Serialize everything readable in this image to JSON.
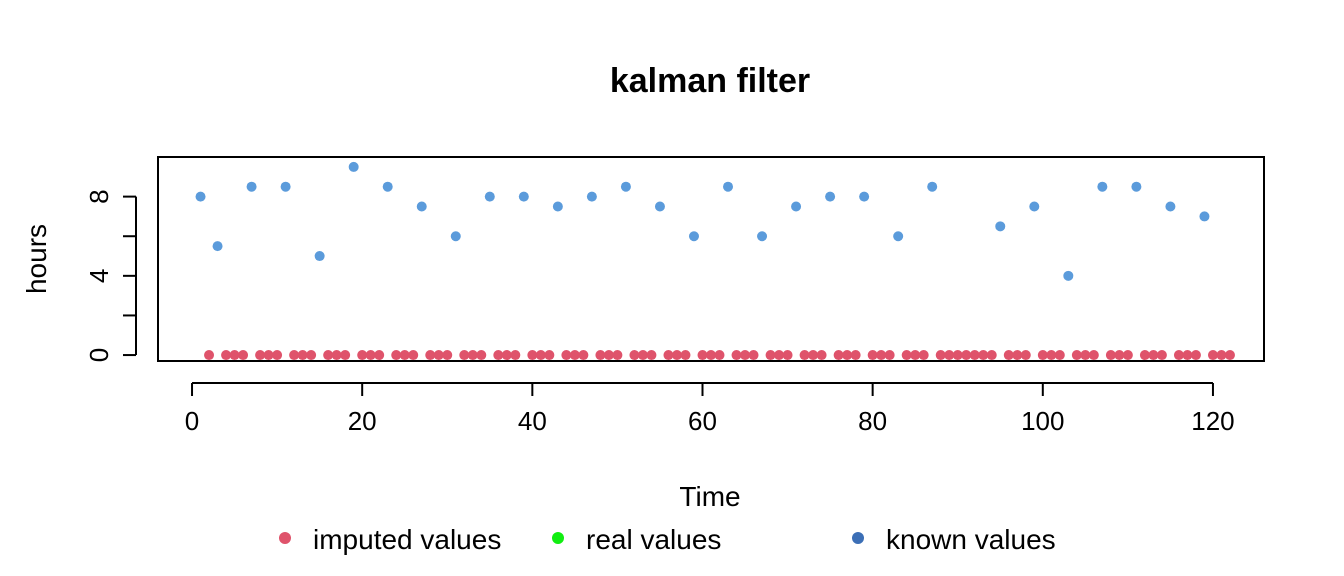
{
  "chart_data": {
    "type": "scatter",
    "title": "kalman filter",
    "xlabel": "Time",
    "ylabel": "hours",
    "xlim": [
      -4,
      126
    ],
    "ylim": [
      -0.3,
      10
    ],
    "xticks": [
      0,
      20,
      40,
      60,
      80,
      100,
      120
    ],
    "yticks": [
      0,
      2,
      4,
      6,
      8
    ],
    "ytick_labels": [
      "0",
      "",
      "4",
      "",
      "8"
    ],
    "grid": false,
    "legend_position": "bottom",
    "series": [
      {
        "name": "imputed values",
        "color": "#DF536B",
        "x": [
          2,
          4,
          5,
          6,
          8,
          9,
          10,
          12,
          13,
          14,
          16,
          17,
          18,
          20,
          21,
          22,
          24,
          25,
          26,
          28,
          29,
          30,
          32,
          33,
          34,
          36,
          37,
          38,
          40,
          41,
          42,
          44,
          45,
          46,
          48,
          49,
          50,
          52,
          53,
          54,
          56,
          57,
          58,
          60,
          61,
          62,
          64,
          65,
          66,
          68,
          69,
          70,
          72,
          73,
          74,
          76,
          77,
          78,
          80,
          81,
          82,
          84,
          85,
          86,
          88,
          89,
          90,
          91,
          92,
          93,
          94,
          96,
          97,
          98,
          100,
          101,
          102,
          104,
          105,
          106,
          108,
          109,
          110,
          112,
          113,
          114,
          116,
          117,
          118,
          120,
          121,
          122
        ],
        "y": [
          0,
          0,
          0,
          0,
          0,
          0,
          0,
          0,
          0,
          0,
          0,
          0,
          0,
          0,
          0,
          0,
          0,
          0,
          0,
          0,
          0,
          0,
          0,
          0,
          0,
          0,
          0,
          0,
          0,
          0,
          0,
          0,
          0,
          0,
          0,
          0,
          0,
          0,
          0,
          0,
          0,
          0,
          0,
          0,
          0,
          0,
          0,
          0,
          0,
          0,
          0,
          0,
          0,
          0,
          0,
          0,
          0,
          0,
          0,
          0,
          0,
          0,
          0,
          0,
          0,
          0,
          0,
          0,
          0,
          0,
          0,
          0,
          0,
          0,
          0,
          0,
          0,
          0,
          0,
          0,
          0,
          0,
          0,
          0,
          0,
          0,
          0,
          0,
          0,
          0,
          0,
          0
        ]
      },
      {
        "name": "real values",
        "color": "#11EE11",
        "x": [],
        "y": []
      },
      {
        "name": "known values",
        "color": "#5B9BDB",
        "legend_color": "#3C6FB6",
        "x": [
          1,
          3,
          7,
          11,
          15,
          19,
          23,
          27,
          31,
          35,
          39,
          43,
          47,
          51,
          55,
          59,
          63,
          67,
          71,
          75,
          79,
          83,
          87,
          95,
          99,
          103,
          107,
          111,
          115,
          119
        ],
        "y": [
          8,
          5.5,
          8.5,
          8.5,
          5,
          9.5,
          8.5,
          7.5,
          6,
          8,
          8,
          7.5,
          8,
          8.5,
          7.5,
          6,
          8.5,
          6,
          7.5,
          8,
          8,
          6,
          8.5,
          6.5,
          7.5,
          4,
          8.5,
          8.5,
          7.5,
          7
        ]
      }
    ]
  }
}
